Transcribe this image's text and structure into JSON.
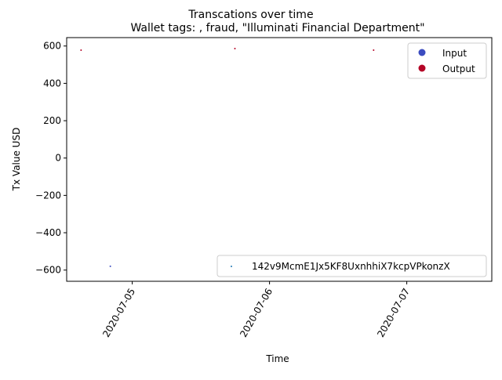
{
  "chart_data": {
    "type": "scatter",
    "suptitle": "Transcations over time",
    "title": "Wallet tags: , fraud, \"Illuminati Financial Department\"",
    "xlabel": "Time",
    "ylabel": "Tx Value USD",
    "xlim": [
      "2020-07-04 12:32",
      "2020-07-07 14:52"
    ],
    "ylim": [
      -660,
      645
    ],
    "xticks": [
      "2020-07-05",
      "2020-07-06",
      "2020-07-07"
    ],
    "yticks": [
      600,
      400,
      200,
      0,
      -200,
      -400,
      -600
    ],
    "ytick_labels": [
      "600",
      "400",
      "200",
      "0",
      "−200",
      "−400",
      "−600"
    ],
    "grid": false,
    "points": [
      {
        "x": "2020-07-04 15:03",
        "y": 578,
        "kind": "Output"
      },
      {
        "x": "2020-07-04 20:10",
        "y": -580,
        "kind": "Input"
      },
      {
        "x": "2020-07-05 17:57",
        "y": 586,
        "kind": "Output"
      },
      {
        "x": "2020-07-06 18:12",
        "y": 578,
        "kind": "Output"
      }
    ],
    "legend": {
      "placement": "top-right",
      "entries": [
        {
          "label": "Input",
          "color": "#3b4cc0"
        },
        {
          "label": "Output",
          "color": "#b40426"
        }
      ]
    },
    "address_legend": {
      "placement": "lower-right",
      "label": "142v9McmE1Jx5KF8UxnhhiX7kcpVPkonzX",
      "color": "#1f77b4"
    },
    "colors": {
      "Input": "#3b4cc0",
      "Output": "#b40426"
    }
  }
}
